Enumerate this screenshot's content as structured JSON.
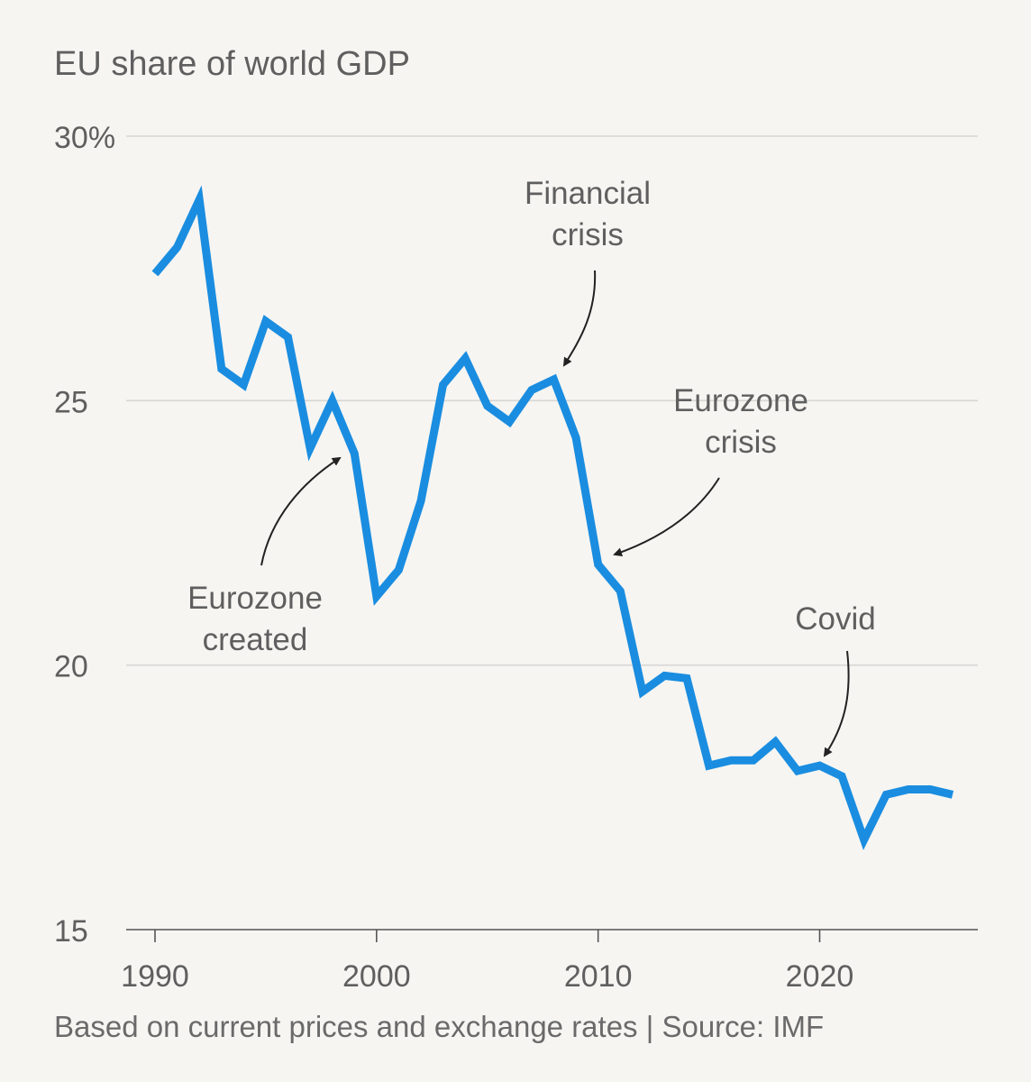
{
  "chart_data": {
    "type": "line",
    "title": "EU share of world GDP",
    "source": "Based on current prices and exchange rates | Source: IMF",
    "xlabel": "",
    "ylabel": "",
    "xlim": [
      1990,
      2026
    ],
    "ylim": [
      15,
      30
    ],
    "x_ticks": [
      1990,
      2000,
      2010,
      2020
    ],
    "x_tick_labels": [
      "1990",
      "2000",
      "2010",
      "2020"
    ],
    "y_ticks": [
      15,
      20,
      25,
      30
    ],
    "y_tick_labels": [
      "15",
      "20",
      "25",
      "30%"
    ],
    "grid": true,
    "line_color": "#1a8de0",
    "series": [
      {
        "x": [
          1990,
          1991,
          1992,
          1993,
          1994,
          1995,
          1996,
          1997,
          1998,
          1999,
          2000,
          2001,
          2002,
          2003,
          2004,
          2005,
          2006,
          2007,
          2008,
          2009,
          2010,
          2011,
          2012,
          2013,
          2014,
          2015,
          2016,
          2017,
          2018,
          2019,
          2020,
          2021,
          2022,
          2023,
          2024,
          2025,
          2026
        ],
        "values": [
          27.4,
          27.9,
          28.8,
          25.6,
          25.3,
          26.5,
          26.2,
          24.1,
          25.0,
          24.0,
          21.3,
          21.8,
          23.1,
          25.3,
          25.8,
          24.9,
          24.6,
          25.2,
          25.4,
          24.3,
          21.9,
          21.4,
          19.5,
          19.8,
          19.75,
          18.1,
          18.2,
          18.2,
          18.55,
          18.0,
          18.1,
          17.9,
          16.7,
          17.55,
          17.65,
          17.65,
          17.55
        ]
      }
    ],
    "annotations": [
      {
        "lines": [
          "Financial",
          "crisis"
        ],
        "x": 2008,
        "y": 25.4
      },
      {
        "lines": [
          "Eurozone",
          "crisis"
        ],
        "x": 2010.5,
        "y": 21.9
      },
      {
        "lines": [
          "Eurozone",
          "created"
        ],
        "x": 1998.4,
        "y": 24.0
      },
      {
        "lines": [
          "Covid"
        ],
        "x": 2020,
        "y": 18.1
      }
    ]
  }
}
